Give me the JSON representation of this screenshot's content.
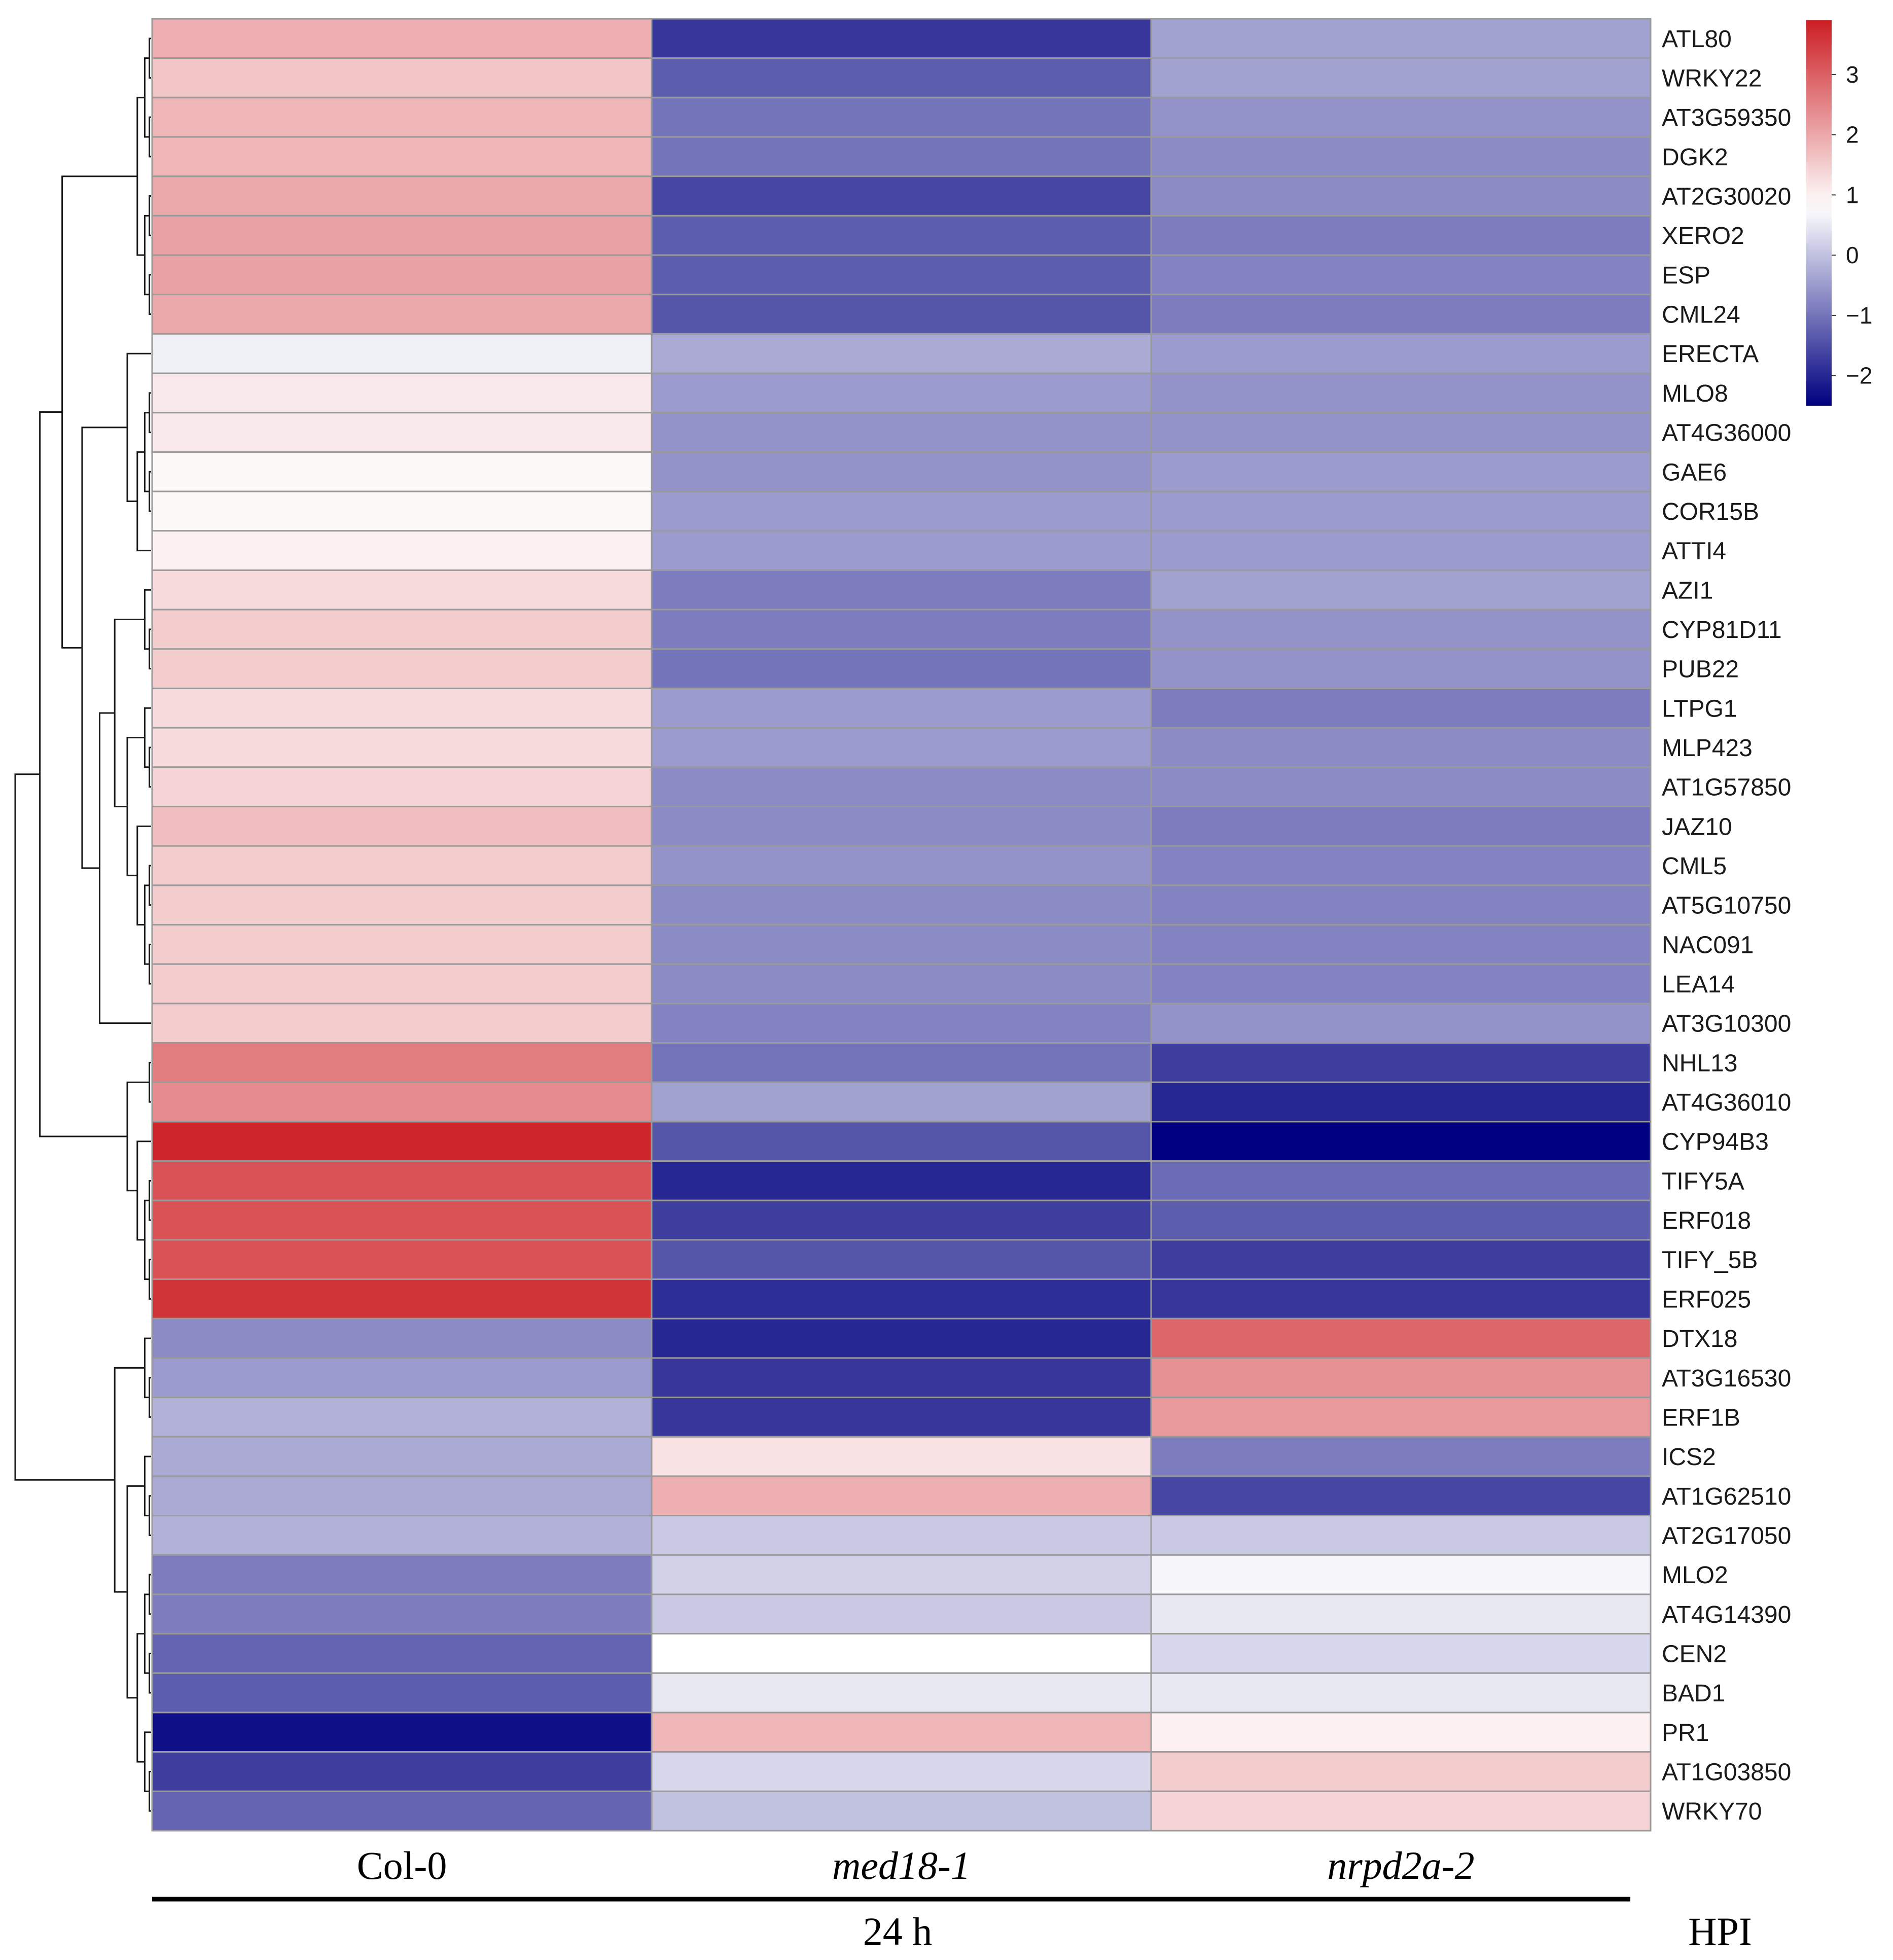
{
  "chart_data": {
    "type": "heatmap",
    "title": "",
    "columns": [
      "Col-0",
      "med18-1",
      "nrpd2a-2"
    ],
    "column_italic": [
      false,
      true,
      true
    ],
    "group_label": "24 h",
    "axis_suffix": "HPI",
    "color_scale": {
      "min": -2.5,
      "max": 3.9,
      "ticks": [
        3,
        2,
        1,
        0,
        -1,
        -2
      ],
      "tick_labels": [
        "3",
        "2",
        "1",
        "0",
        "−1",
        "−2"
      ],
      "stops": [
        {
          "v": -2.5,
          "color": "#000080"
        },
        {
          "v": 0.8,
          "color": "#ffffff"
        },
        {
          "v": 3.9,
          "color": "#cc1e23"
        }
      ]
    },
    "rows": [
      {
        "gene": "ATL80",
        "values": [
          1.9,
          -1.8,
          -0.4
        ]
      },
      {
        "gene": "WRKY22",
        "values": [
          1.6,
          -1.3,
          -0.4
        ]
      },
      {
        "gene": "AT3G59350",
        "values": [
          1.8,
          -1.0,
          -0.6
        ]
      },
      {
        "gene": "DGK2",
        "values": [
          1.8,
          -1.0,
          -0.7
        ]
      },
      {
        "gene": "AT2G30020",
        "values": [
          2.0,
          -1.6,
          -0.7
        ]
      },
      {
        "gene": "XERO2",
        "values": [
          2.1,
          -1.3,
          -0.9
        ]
      },
      {
        "gene": "ESP",
        "values": [
          2.1,
          -1.3,
          -0.8
        ]
      },
      {
        "gene": "CML24",
        "values": [
          2.0,
          -1.4,
          -0.9
        ]
      },
      {
        "gene": "ERECTA",
        "values": [
          0.6,
          -0.3,
          -0.5
        ]
      },
      {
        "gene": "MLO8",
        "values": [
          1.1,
          -0.5,
          -0.6
        ]
      },
      {
        "gene": "AT4G36000",
        "values": [
          1.1,
          -0.6,
          -0.6
        ]
      },
      {
        "gene": "GAE6",
        "values": [
          0.9,
          -0.6,
          -0.5
        ]
      },
      {
        "gene": "COR15B",
        "values": [
          0.9,
          -0.5,
          -0.5
        ]
      },
      {
        "gene": "ATTI4",
        "values": [
          1.0,
          -0.5,
          -0.5
        ]
      },
      {
        "gene": "AZI1",
        "values": [
          1.3,
          -0.9,
          -0.4
        ]
      },
      {
        "gene": "CYP81D11",
        "values": [
          1.5,
          -0.9,
          -0.6
        ]
      },
      {
        "gene": "PUB22",
        "values": [
          1.5,
          -1.0,
          -0.6
        ]
      },
      {
        "gene": "LTPG1",
        "values": [
          1.3,
          -0.5,
          -0.9
        ]
      },
      {
        "gene": "MLP423",
        "values": [
          1.3,
          -0.5,
          -0.7
        ]
      },
      {
        "gene": "AT1G57850",
        "values": [
          1.4,
          -0.7,
          -0.7
        ]
      },
      {
        "gene": "JAZ10",
        "values": [
          1.7,
          -0.7,
          -0.9
        ]
      },
      {
        "gene": "CML5",
        "values": [
          1.5,
          -0.6,
          -0.8
        ]
      },
      {
        "gene": "AT5G10750",
        "values": [
          1.5,
          -0.7,
          -0.8
        ]
      },
      {
        "gene": "NAC091",
        "values": [
          1.5,
          -0.7,
          -0.8
        ]
      },
      {
        "gene": "LEA14",
        "values": [
          1.5,
          -0.7,
          -0.8
        ]
      },
      {
        "gene": "AT3G10300",
        "values": [
          1.5,
          -0.8,
          -0.6
        ]
      },
      {
        "gene": "NHL13",
        "values": [
          2.6,
          -1.0,
          -1.7
        ]
      },
      {
        "gene": "AT4G36010",
        "values": [
          2.4,
          -0.4,
          -2.0
        ]
      },
      {
        "gene": "CYP94B3",
        "values": [
          3.8,
          -1.4,
          -2.5
        ]
      },
      {
        "gene": "TIFY5A",
        "values": [
          3.2,
          -2.0,
          -1.1
        ]
      },
      {
        "gene": "ERF018",
        "values": [
          3.2,
          -1.7,
          -1.3
        ]
      },
      {
        "gene": "TIFY_5B",
        "values": [
          3.2,
          -1.4,
          -1.7
        ]
      },
      {
        "gene": "ERF025",
        "values": [
          3.6,
          -1.9,
          -1.8
        ]
      },
      {
        "gene": "DTX18",
        "values": [
          -0.7,
          -2.0,
          2.9
        ]
      },
      {
        "gene": "AT3G16530",
        "values": [
          -0.5,
          -1.8,
          2.3
        ]
      },
      {
        "gene": "ERF1B",
        "values": [
          -0.2,
          -1.8,
          2.2
        ]
      },
      {
        "gene": "ICS2",
        "values": [
          -0.3,
          1.2,
          -0.9
        ]
      },
      {
        "gene": "AT1G62510",
        "values": [
          -0.3,
          1.9,
          -1.6
        ]
      },
      {
        "gene": "AT2G17050",
        "values": [
          -0.2,
          0.1,
          0.1
        ]
      },
      {
        "gene": "MLO2",
        "values": [
          -0.9,
          0.2,
          0.7
        ]
      },
      {
        "gene": "AT4G14390",
        "values": [
          -0.9,
          0.1,
          0.5
        ]
      },
      {
        "gene": "CEN2",
        "values": [
          -1.2,
          0.8,
          0.3
        ]
      },
      {
        "gene": "BAD1",
        "values": [
          -1.3,
          0.5,
          0.5
        ]
      },
      {
        "gene": "PR1",
        "values": [
          -2.3,
          1.8,
          1.0
        ]
      },
      {
        "gene": "AT1G03850",
        "values": [
          -1.7,
          0.3,
          1.5
        ]
      },
      {
        "gene": "WRKY70",
        "values": [
          -1.2,
          0.0,
          1.4
        ]
      }
    ],
    "dendrogram_merges": [
      [
        0,
        1
      ],
      [
        2,
        3
      ],
      [
        -1,
        -2
      ],
      [
        4,
        5
      ],
      [
        6,
        7
      ],
      [
        -4,
        -5
      ],
      [
        -3,
        -6
      ],
      [
        9,
        10
      ],
      [
        11,
        12
      ],
      [
        -8,
        -9
      ],
      [
        13,
        -10
      ],
      [
        8,
        -11
      ],
      [
        15,
        16
      ],
      [
        14,
        -13
      ],
      [
        18,
        19
      ],
      [
        17,
        -15
      ],
      [
        21,
        22
      ],
      [
        23,
        24
      ],
      [
        -17,
        -18
      ],
      [
        20,
        -19
      ],
      [
        -16,
        -20
      ],
      [
        -14,
        -21
      ],
      [
        25,
        -22
      ],
      [
        -12,
        -23
      ],
      [
        -7,
        -24
      ],
      [
        26,
        27
      ],
      [
        29,
        30
      ],
      [
        31,
        32
      ],
      [
        -27,
        -28
      ],
      [
        28,
        -29
      ],
      [
        -26,
        -30
      ],
      [
        -25,
        -31
      ],
      [
        34,
        35
      ],
      [
        33,
        -33
      ],
      [
        37,
        38
      ],
      [
        36,
        -35
      ],
      [
        39,
        40
      ],
      [
        41,
        42
      ],
      [
        -37,
        -38
      ],
      [
        44,
        45
      ],
      [
        43,
        -40
      ],
      [
        -39,
        -41
      ],
      [
        -36,
        -42
      ],
      [
        -34,
        -43
      ],
      [
        -32,
        -44
      ]
    ]
  }
}
